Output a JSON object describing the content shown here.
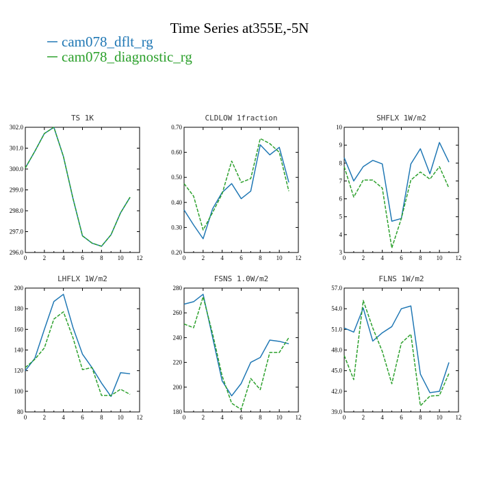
{
  "title": "Time Series at355E,-5N",
  "colors": {
    "blue": "#1f77b4",
    "green": "#2ca02c",
    "axis": "#000000"
  },
  "legend": [
    {
      "label": "cam078_dflt_rg",
      "color": "#1f77b4",
      "dash": "solid"
    },
    {
      "label": "cam078_diagnostic_rg",
      "color": "#2ca02c",
      "dash": "dashed"
    }
  ],
  "chart_data": [
    {
      "type": "line",
      "title": "TS   1K",
      "x": [
        0,
        1,
        2,
        3,
        4,
        5,
        6,
        7,
        8,
        9,
        10,
        11
      ],
      "xlim": [
        0,
        12
      ],
      "xticks": [
        0,
        2,
        4,
        6,
        8,
        10,
        12
      ],
      "ylim": [
        296.0,
        302.0
      ],
      "yticks": [
        "296.0",
        "297.0",
        "298.0",
        "299.0",
        "300.0",
        "301.0",
        "302.0"
      ],
      "series": [
        {
          "name": "cam078_dflt_rg",
          "values": [
            300.05,
            300.85,
            301.7,
            302.0,
            300.6,
            298.6,
            296.8,
            296.45,
            296.3,
            296.85,
            297.9,
            298.65
          ]
        },
        {
          "name": "cam078_diagnostic_rg",
          "values": [
            300.05,
            300.85,
            301.7,
            302.0,
            300.6,
            298.6,
            296.8,
            296.45,
            296.3,
            296.85,
            297.9,
            298.65
          ]
        }
      ]
    },
    {
      "type": "line",
      "title": "CLDLOW   1fraction",
      "x": [
        0,
        1,
        2,
        3,
        4,
        5,
        6,
        7,
        8,
        9,
        10,
        11
      ],
      "xlim": [
        0,
        12
      ],
      "xticks": [
        0,
        2,
        4,
        6,
        8,
        10,
        12
      ],
      "ylim": [
        0.2,
        0.7
      ],
      "yticks": [
        "0.20",
        "0.30",
        "0.40",
        "0.50",
        "0.60",
        "0.70"
      ],
      "series": [
        {
          "name": "cam078_dflt_rg",
          "values": [
            0.37,
            0.31,
            0.255,
            0.375,
            0.44,
            0.475,
            0.415,
            0.445,
            0.63,
            0.59,
            0.62,
            0.48
          ]
        },
        {
          "name": "cam078_diagnostic_rg",
          "values": [
            0.475,
            0.425,
            0.29,
            0.36,
            0.435,
            0.565,
            0.48,
            0.495,
            0.655,
            0.635,
            0.6,
            0.445
          ]
        }
      ]
    },
    {
      "type": "line",
      "title": "SHFLX   1W/m2",
      "x": [
        0,
        1,
        2,
        3,
        4,
        5,
        6,
        7,
        8,
        9,
        10,
        11
      ],
      "xlim": [
        0,
        12
      ],
      "xticks": [
        0,
        2,
        4,
        6,
        8,
        10,
        12
      ],
      "ylim": [
        3,
        10
      ],
      "yticks": [
        "3",
        "4",
        "5",
        "6",
        "7",
        "8",
        "9",
        "10"
      ],
      "series": [
        {
          "name": "cam078_dflt_rg",
          "values": [
            8.3,
            7.0,
            7.8,
            8.15,
            7.95,
            4.75,
            4.9,
            7.95,
            8.8,
            7.4,
            9.15,
            8.05
          ]
        },
        {
          "name": "cam078_diagnostic_rg",
          "values": [
            7.8,
            6.1,
            7.05,
            7.05,
            6.6,
            3.25,
            4.9,
            7.05,
            7.5,
            7.1,
            7.8,
            6.6
          ]
        }
      ]
    },
    {
      "type": "line",
      "title": "LHFLX   1W/m2",
      "x": [
        0,
        1,
        2,
        3,
        4,
        5,
        6,
        7,
        8,
        9,
        10,
        11
      ],
      "xlim": [
        0,
        12
      ],
      "xticks": [
        0,
        2,
        4,
        6,
        8,
        10,
        12
      ],
      "ylim": [
        80,
        200
      ],
      "yticks": [
        "80",
        "100",
        "120",
        "140",
        "160",
        "180",
        "200"
      ],
      "series": [
        {
          "name": "cam078_dflt_rg",
          "values": [
            120,
            132,
            160,
            187,
            194,
            162,
            136,
            123,
            108,
            95,
            118,
            117
          ]
        },
        {
          "name": "cam078_diagnostic_rg",
          "values": [
            123,
            131,
            142,
            170,
            177,
            152,
            121,
            123,
            96,
            96,
            102,
            97
          ]
        }
      ]
    },
    {
      "type": "line",
      "title": "FSNS   1.0W/m2",
      "x": [
        0,
        1,
        2,
        3,
        4,
        5,
        6,
        7,
        8,
        9,
        10,
        11
      ],
      "xlim": [
        0,
        12
      ],
      "xticks": [
        0,
        2,
        4,
        6,
        8,
        10,
        12
      ],
      "ylim": [
        180,
        280
      ],
      "yticks": [
        "180",
        "200",
        "220",
        "240",
        "260",
        "280"
      ],
      "series": [
        {
          "name": "cam078_dflt_rg",
          "values": [
            267,
            269,
            275,
            240,
            205,
            193,
            203,
            220,
            224,
            238,
            237,
            235
          ]
        },
        {
          "name": "cam078_diagnostic_rg",
          "values": [
            251,
            248,
            273,
            243,
            209,
            187,
            182,
            207,
            198,
            228,
            228,
            240
          ]
        }
      ]
    },
    {
      "type": "line",
      "title": "FLNS   1W/m2",
      "x": [
        0,
        1,
        2,
        3,
        4,
        5,
        6,
        7,
        8,
        9,
        10,
        11
      ],
      "xlim": [
        0,
        12
      ],
      "xticks": [
        0,
        2,
        4,
        6,
        8,
        10,
        12
      ],
      "ylim": [
        39.0,
        57.0
      ],
      "yticks": [
        "39.0",
        "42.0",
        "45.0",
        "48.0",
        "51.0",
        "54.0",
        "57.0"
      ],
      "series": [
        {
          "name": "cam078_dflt_rg",
          "values": [
            51.2,
            50.6,
            54.1,
            49.3,
            50.5,
            51.4,
            54.0,
            54.4,
            44.5,
            41.8,
            42.0,
            46.2
          ]
        },
        {
          "name": "cam078_diagnostic_rg",
          "values": [
            47.2,
            43.7,
            55.2,
            51.2,
            47.8,
            43.1,
            49.0,
            50.3,
            39.9,
            41.3,
            41.4,
            44.6
          ]
        }
      ]
    }
  ]
}
